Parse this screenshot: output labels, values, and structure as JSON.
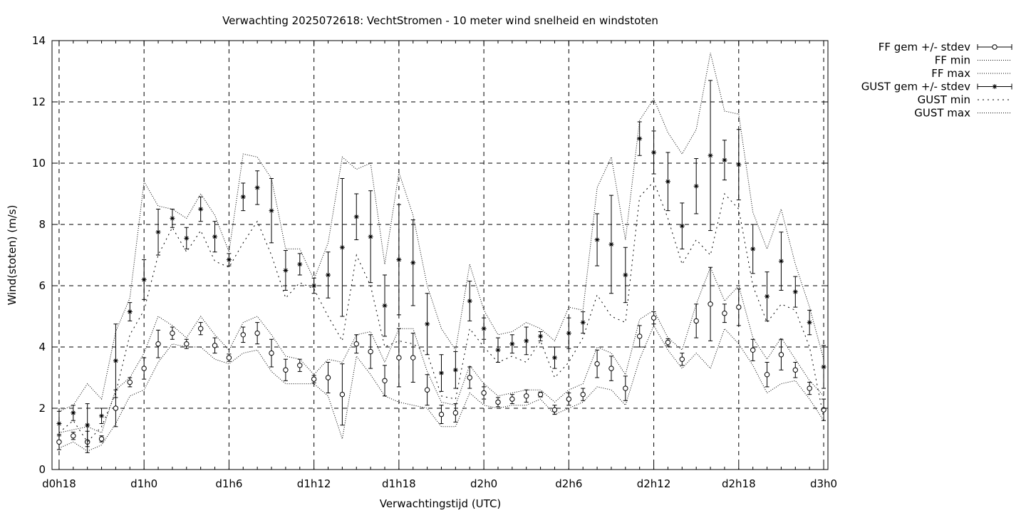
{
  "chart_data": {
    "type": "line",
    "title": "Verwachting 2025072618: VechtStromen - 10 meter wind snelheid en windstoten",
    "xlabel": "Verwachtingstijd (UTC)",
    "ylabel": "Wind(stoten) (m/s)",
    "ylim": [
      0,
      14
    ],
    "yticks": [
      0,
      2,
      4,
      6,
      8,
      10,
      12,
      14
    ],
    "x_unit": "hours since d0h0",
    "xlim": [
      17.5,
      72.3
    ],
    "xticks": [
      {
        "x": 18,
        "label": "d0h18"
      },
      {
        "x": 24,
        "label": "d1h0"
      },
      {
        "x": 30,
        "label": "d1h6"
      },
      {
        "x": 36,
        "label": "d1h12"
      },
      {
        "x": 42,
        "label": "d1h18"
      },
      {
        "x": 48,
        "label": "d2h0"
      },
      {
        "x": 54,
        "label": "d2h6"
      },
      {
        "x": 60,
        "label": "d2h12"
      },
      {
        "x": 66,
        "label": "d2h18"
      },
      {
        "x": 72,
        "label": "d3h0"
      }
    ],
    "grid": true,
    "legend_position": "outside-top-right",
    "x": [
      18,
      19,
      20,
      21,
      22,
      23,
      24,
      25,
      26,
      27,
      28,
      29,
      30,
      31,
      32,
      33,
      34,
      35,
      36,
      37,
      38,
      39,
      40,
      41,
      42,
      43,
      44,
      45,
      46,
      47,
      48,
      49,
      50,
      51,
      52,
      53,
      54,
      55,
      56,
      57,
      58,
      59,
      60,
      61,
      62,
      63,
      64,
      65,
      66,
      67,
      68,
      69,
      70,
      71,
      72
    ],
    "series": [
      {
        "name": "FF gem +/- stdev",
        "marker": "circle",
        "mean": [
          0.9,
          1.1,
          0.9,
          1.0,
          2.0,
          2.85,
          3.3,
          4.1,
          4.45,
          4.1,
          4.6,
          4.05,
          3.65,
          4.4,
          4.45,
          3.8,
          3.25,
          3.4,
          2.95,
          3.0,
          2.45,
          4.1,
          3.85,
          2.9,
          3.65,
          3.65,
          2.6,
          1.8,
          1.85,
          3.0,
          2.5,
          2.2,
          2.3,
          2.4,
          2.45,
          1.95,
          2.3,
          2.45,
          3.45,
          3.3,
          2.65,
          4.35,
          4.95,
          4.15,
          3.6,
          4.85,
          5.4,
          5.1,
          5.3,
          3.9,
          3.1,
          3.75,
          3.25,
          2.65,
          1.95
        ],
        "stdev": [
          0.25,
          0.12,
          0.35,
          0.1,
          0.6,
          0.15,
          0.35,
          0.45,
          0.2,
          0.15,
          0.2,
          0.25,
          0.12,
          0.25,
          0.35,
          0.45,
          0.35,
          0.2,
          0.12,
          0.5,
          1.0,
          0.3,
          0.55,
          0.5,
          0.95,
          0.8,
          0.5,
          0.3,
          0.3,
          0.35,
          0.2,
          0.15,
          0.15,
          0.2,
          0.08,
          0.15,
          0.2,
          0.2,
          0.45,
          0.4,
          0.4,
          0.35,
          0.2,
          0.12,
          0.2,
          0.55,
          1.2,
          0.3,
          0.6,
          0.35,
          0.4,
          0.5,
          0.25,
          0.2,
          0.35
        ]
      },
      {
        "name": "FF min",
        "values": [
          0.7,
          0.9,
          0.6,
          0.8,
          1.5,
          2.4,
          2.6,
          3.5,
          4.1,
          4.0,
          4.0,
          3.6,
          3.45,
          3.8,
          3.9,
          3.2,
          2.8,
          2.8,
          2.8,
          2.4,
          1.0,
          3.7,
          3.1,
          2.4,
          2.2,
          2.1,
          2.0,
          1.4,
          1.4,
          2.5,
          2.1,
          2.0,
          2.1,
          2.1,
          2.3,
          1.8,
          2.0,
          2.2,
          2.7,
          2.6,
          2.1,
          3.6,
          4.7,
          3.9,
          3.3,
          3.8,
          3.3,
          4.6,
          4.1,
          3.4,
          2.5,
          2.8,
          2.9,
          2.3,
          1.6
        ]
      },
      {
        "name": "FF max",
        "values": [
          1.2,
          1.3,
          1.4,
          1.2,
          2.6,
          3.0,
          3.8,
          5.0,
          4.7,
          4.3,
          5.0,
          4.4,
          3.9,
          4.8,
          5.0,
          4.4,
          3.7,
          3.6,
          3.1,
          3.6,
          3.5,
          4.4,
          4.5,
          3.5,
          4.6,
          4.6,
          3.2,
          2.2,
          2.1,
          3.4,
          2.8,
          2.4,
          2.5,
          2.6,
          2.6,
          2.2,
          2.6,
          2.8,
          4.0,
          3.8,
          3.1,
          4.9,
          5.2,
          4.3,
          3.9,
          5.4,
          6.6,
          5.5,
          6.0,
          4.3,
          3.6,
          4.3,
          3.6,
          2.9,
          2.4
        ]
      },
      {
        "name": "GUST gem +/- stdev",
        "marker": "star",
        "mean": [
          1.5,
          1.85,
          1.45,
          1.75,
          3.55,
          5.15,
          6.2,
          7.75,
          8.2,
          7.55,
          8.5,
          7.6,
          6.85,
          8.9,
          9.2,
          8.45,
          6.5,
          6.7,
          6.0,
          6.35,
          7.25,
          8.25,
          7.6,
          5.35,
          6.85,
          6.75,
          4.75,
          3.15,
          3.25,
          5.5,
          4.6,
          3.9,
          4.1,
          4.2,
          4.35,
          3.65,
          4.45,
          4.8,
          7.5,
          7.35,
          6.35,
          10.8,
          10.35,
          9.4,
          7.95,
          9.25,
          10.25,
          10.1,
          9.95,
          7.2,
          5.65,
          6.8,
          5.8,
          4.8,
          3.35
        ],
        "stdev": [
          0.4,
          0.25,
          0.7,
          0.25,
          1.2,
          0.3,
          0.65,
          0.75,
          0.3,
          0.35,
          0.4,
          0.5,
          0.2,
          0.45,
          0.55,
          1.05,
          0.65,
          0.35,
          0.25,
          0.75,
          2.25,
          0.75,
          1.5,
          1.0,
          1.8,
          1.4,
          1.0,
          0.6,
          0.6,
          0.65,
          0.35,
          0.4,
          0.3,
          0.45,
          0.15,
          0.35,
          0.5,
          0.35,
          0.85,
          1.6,
          0.9,
          0.55,
          0.7,
          0.95,
          0.75,
          0.9,
          2.45,
          0.65,
          1.15,
          0.8,
          0.8,
          0.95,
          0.5,
          0.4,
          0.7
        ]
      },
      {
        "name": "GUST min",
        "values": [
          1.2,
          1.6,
          0.9,
          1.4,
          2.5,
          4.4,
          5.2,
          7.0,
          7.9,
          7.1,
          7.8,
          6.8,
          6.6,
          7.4,
          8.1,
          7.0,
          5.6,
          6.1,
          5.9,
          5.0,
          4.2,
          7.0,
          6.0,
          4.0,
          4.2,
          4.1,
          3.8,
          2.4,
          2.3,
          4.6,
          4.0,
          3.5,
          3.7,
          3.5,
          4.2,
          3.0,
          3.5,
          4.3,
          5.7,
          5.0,
          4.8,
          8.9,
          9.4,
          8.2,
          6.7,
          7.5,
          7.0,
          9.0,
          8.5,
          6.0,
          4.8,
          5.4,
          5.2,
          4.0,
          1.7
        ]
      },
      {
        "name": "GUST max",
        "values": [
          1.9,
          2.1,
          2.8,
          2.3,
          4.5,
          5.6,
          9.4,
          8.6,
          8.5,
          8.2,
          9.0,
          8.3,
          7.1,
          10.3,
          10.2,
          9.5,
          7.2,
          7.2,
          6.2,
          7.4,
          10.2,
          9.8,
          10.0,
          6.7,
          9.7,
          8.3,
          6.0,
          4.6,
          3.9,
          6.7,
          5.2,
          4.4,
          4.5,
          4.8,
          4.6,
          4.2,
          5.3,
          5.2,
          9.2,
          10.2,
          7.5,
          11.4,
          12.1,
          11.0,
          10.3,
          11.1,
          13.6,
          11.7,
          11.6,
          8.4,
          7.2,
          8.5,
          6.7,
          5.3,
          3.6
        ]
      }
    ]
  }
}
